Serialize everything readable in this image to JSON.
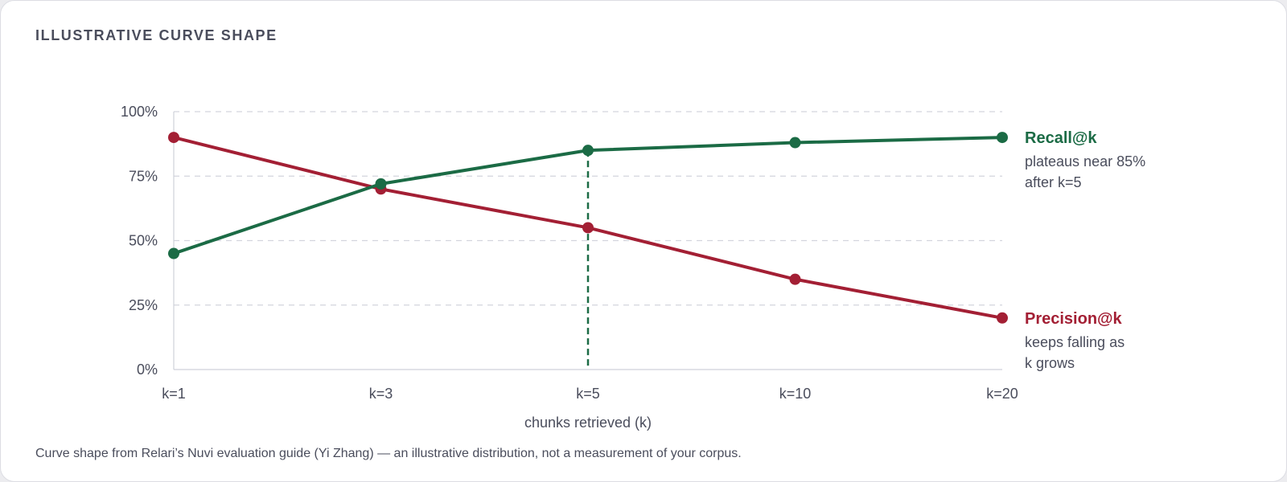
{
  "card": {
    "title": "ILLUSTRATIVE CURVE SHAPE",
    "footnote": "Curve shape from Relari’s Nuvi evaluation guide (Yi Zhang) — an illustrative distribution, not a measurement of your corpus."
  },
  "chart_data": {
    "type": "line",
    "categories": [
      "k=1",
      "k=3",
      "k=5",
      "k=10",
      "k=20"
    ],
    "xlabel": "chunks retrieved (k)",
    "ylabel": "",
    "ylim": [
      0,
      100
    ],
    "yticks": [
      0,
      25,
      50,
      75,
      100
    ],
    "ytick_labels": [
      "0%",
      "25%",
      "50%",
      "75%",
      "100%"
    ],
    "grid": true,
    "legend": "right",
    "series": [
      {
        "name": "Recall@k",
        "color": "#1b6b45",
        "values": [
          45,
          72,
          85,
          88,
          90
        ],
        "note_lines": [
          "plateaus near 85%",
          "after k=5"
        ]
      },
      {
        "name": "Precision@k",
        "color": "#a31f34",
        "values": [
          90,
          70,
          55,
          35,
          20
        ],
        "note_lines": [
          "keeps falling as",
          "k grows"
        ]
      }
    ],
    "marker_line": {
      "category": "k=5",
      "series": "Recall@k",
      "style": "dashed"
    }
  }
}
